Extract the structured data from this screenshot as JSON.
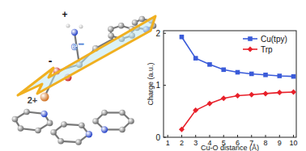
{
  "chart_data": {
    "type": "line",
    "x_label": "Cu-O distance (Å)",
    "y_label": "Charge (a.u.)",
    "x": [
      2,
      3,
      4,
      5,
      6,
      7,
      8,
      9,
      10
    ],
    "series": [
      {
        "name": "Cu(tpy)",
        "color": "#3a5bd9",
        "marker": "square",
        "line_style": "solid",
        "values": [
          1.93,
          1.52,
          1.4,
          1.3,
          1.25,
          1.22,
          1.2,
          1.18,
          1.17
        ]
      },
      {
        "name": "Trp",
        "color": "#e8202a",
        "marker": "diamond",
        "line_style": "solid",
        "values": [
          0.15,
          0.52,
          0.65,
          0.75,
          0.8,
          0.82,
          0.84,
          0.86,
          0.87
        ]
      }
    ],
    "xlim": [
      0.7,
      10.2
    ],
    "xticks": [
      1,
      2,
      3,
      4,
      5,
      6,
      7,
      8,
      9,
      10
    ],
    "ylim": [
      0,
      2.05
    ],
    "yticks": [
      0,
      1,
      2
    ],
    "legend": "upper right",
    "grid": false,
    "annotations": [
      "+",
      "-",
      "e⁻",
      "2+"
    ]
  }
}
